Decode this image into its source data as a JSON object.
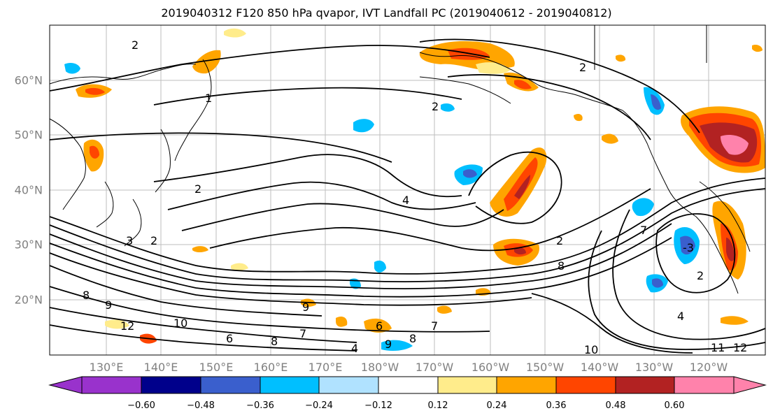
{
  "title": "2019040312 F120 850 hPa qvapor, IVT Landfall PC (2019040612 - 2019040812)",
  "lat_ticks": [
    "60°N",
    "50°N",
    "40°N",
    "30°N",
    "20°N"
  ],
  "lon_ticks": [
    "130°E",
    "140°E",
    "150°E",
    "160°E",
    "170°E",
    "180°W",
    "170°W",
    "160°W",
    "150°W",
    "140°W",
    "130°W",
    "120°W"
  ],
  "colorbar": {
    "labels": [
      "−0.60",
      "−0.48",
      "−0.36",
      "−0.24",
      "−0.12",
      "0.12",
      "0.24",
      "0.36",
      "0.48",
      "0.60"
    ],
    "colors": [
      "#9932cc",
      "#00008b",
      "#3a5fcd",
      "#00bfff",
      "#b0e2ff",
      "#ffffff",
      "#ffec8b",
      "#ffa500",
      "#ff4500",
      "#b22222",
      "#ff82ab"
    ]
  },
  "contour_labels": [
    {
      "text": "2"
    },
    {
      "text": "1"
    },
    {
      "text": "2"
    },
    {
      "text": "2"
    },
    {
      "text": "2"
    },
    {
      "text": "4"
    },
    {
      "text": "2"
    },
    {
      "text": "2"
    },
    {
      "text": "3"
    },
    {
      "text": "7"
    },
    {
      "text": "8"
    },
    {
      "text": "9"
    },
    {
      "text": "10"
    },
    {
      "text": "12"
    },
    {
      "text": "9"
    },
    {
      "text": "6"
    },
    {
      "text": "8"
    },
    {
      "text": "7"
    },
    {
      "text": "6"
    },
    {
      "text": "4"
    },
    {
      "text": "9"
    },
    {
      "text": "8"
    },
    {
      "text": "7"
    },
    {
      "text": "-3"
    },
    {
      "text": "8"
    },
    {
      "text": "10"
    },
    {
      "text": "11"
    },
    {
      "text": "12"
    },
    {
      "text": "4"
    },
    {
      "text": "2"
    }
  ]
}
